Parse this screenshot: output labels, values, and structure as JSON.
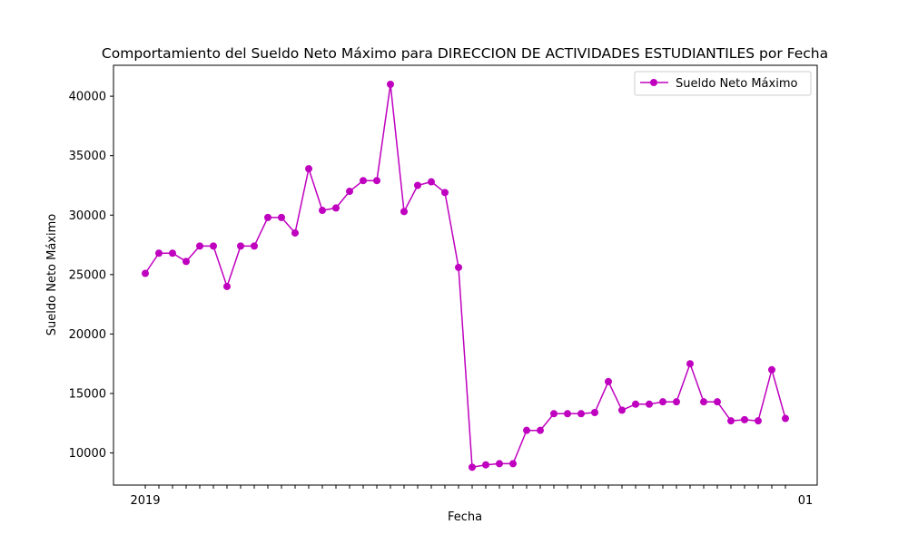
{
  "chart_data": {
    "type": "line",
    "title": "Comportamiento del Sueldo Neto Máximo para DIRECCION DE ACTIVIDADES ESTUDIANTILES por Fecha",
    "xlabel": "Fecha",
    "ylabel": "Sueldo Neto Máximo",
    "ylim": [
      7300,
      42600
    ],
    "yticks": [
      10000,
      15000,
      20000,
      25000,
      30000,
      35000,
      40000
    ],
    "grid": false,
    "legend_position": "top-right",
    "x_tick_first_label": "2019",
    "x_tick_last_label": "01",
    "series": [
      {
        "name": "Sueldo Neto Máximo",
        "color": "#bf00bf",
        "values": [
          25100,
          26800,
          26800,
          26100,
          27400,
          27400,
          24000,
          27400,
          27400,
          29800,
          29800,
          28500,
          33900,
          30400,
          30600,
          32000,
          32900,
          32900,
          41000,
          30300,
          32500,
          32800,
          31900,
          25600,
          8800,
          9000,
          9100,
          9100,
          11900,
          11900,
          13300,
          13300,
          13300,
          13400,
          16000,
          13600,
          14100,
          14100,
          14300,
          14300,
          17500,
          14300,
          14300,
          12700,
          12800,
          12700,
          17000,
          12900
        ]
      }
    ]
  }
}
